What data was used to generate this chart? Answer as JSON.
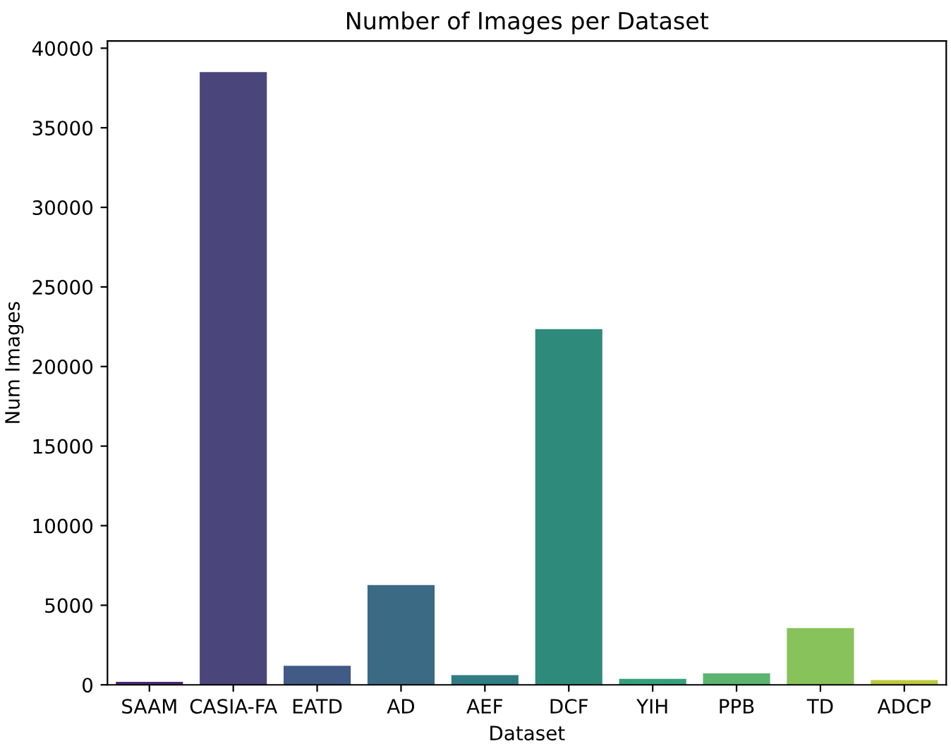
{
  "chart_data": {
    "type": "bar",
    "title": "Number of Images per Dataset",
    "xlabel": "Dataset",
    "ylabel": "Num Images",
    "categories": [
      "SAAM",
      "CASIA-FA",
      "EATD",
      "AD",
      "AEF",
      "DCF",
      "YIH",
      "PPB",
      "TD",
      "ADCP"
    ],
    "values": [
      190,
      38500,
      1200,
      6270,
      610,
      22350,
      380,
      720,
      3570,
      300
    ],
    "colors": [
      "#4b2a73",
      "#4a467b",
      "#415a86",
      "#3a6a84",
      "#2f7d82",
      "#2e8b7c",
      "#34a17b",
      "#5bb56e",
      "#88c25a",
      "#bdc73f"
    ],
    "ylim": [
      0,
      40450
    ],
    "yticks": [
      0,
      5000,
      10000,
      15000,
      20000,
      25000,
      30000,
      35000,
      40000
    ],
    "grid": false
  }
}
